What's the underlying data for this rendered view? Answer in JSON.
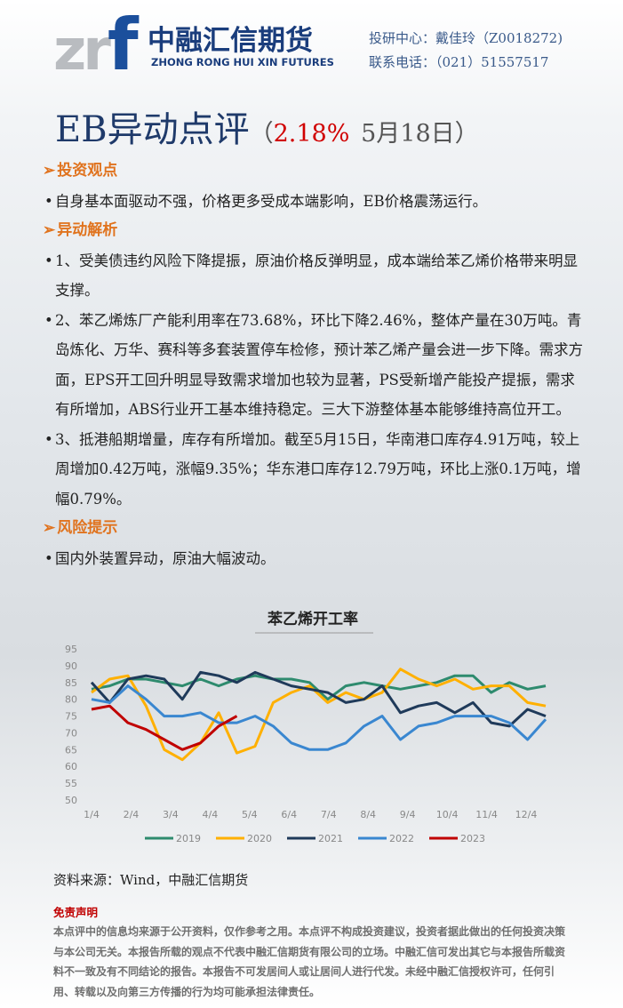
{
  "header": {
    "logo_mark_gray": "zr",
    "logo_mark_blue": "f",
    "company": "中融汇信期货",
    "company_en": "ZHONG RONG HUI XIN FUTURES",
    "contact_person": "投研中心：戴佳玲（Z0018272)",
    "contact_phone": "联系电话：（021）51557517"
  },
  "title": {
    "main": "EB异动点评",
    "open": "（",
    "change": "2.18%",
    "date": "5月18日）"
  },
  "sections": [
    {
      "heading": "投资观点",
      "bullets": [
        "自身基本面驱动不强，价格更多受成本端影响，EB价格震荡运行。"
      ]
    },
    {
      "heading": "异动解析",
      "bullets": [
        "1、受美债违约风险下降提振，原油价格反弹明显，成本端给苯乙烯价格带来明显支撑。",
        "2、苯乙烯炼厂产能利用率在73.68%，环比下降2.46%，整体产量在30万吨。青岛炼化、万华、赛科等多套装置停车检修，预计苯乙烯产量会进一步下降。需求方面，EPS开工回升明显导致需求增加也较为显著，PS受新增产能投产提振，需求有所增加，ABS行业开工基本维持稳定。三大下游整体基本能够维持高位开工。",
        "3、抵港船期增量，库存有所增加。截至5月15日，华南港口库存4.91万吨，较上周增加0.42万吨，涨幅9.35%；华东港口库存12.79万吨，环比上涨0.1万吨，增幅0.79%。"
      ]
    },
    {
      "heading": "风险提示",
      "bullets": [
        "国内外装置异动，原油大幅波动。"
      ]
    }
  ],
  "chart_data": {
    "type": "line",
    "title": "苯乙烯开工率",
    "x": [
      0,
      2,
      4,
      6,
      8,
      10,
      12,
      14,
      16,
      18,
      20,
      22,
      24,
      26,
      28,
      30,
      32,
      34,
      36,
      38,
      40,
      42,
      44,
      46,
      48,
      50
    ],
    "xlim": [
      0,
      50
    ],
    "xticks": [
      {
        "value": 0,
        "label": "1/4"
      },
      {
        "value": 4.35,
        "label": "2/4"
      },
      {
        "value": 8.7,
        "label": "3/4"
      },
      {
        "value": 13.05,
        "label": "4/4"
      },
      {
        "value": 17.4,
        "label": "5/4"
      },
      {
        "value": 21.75,
        "label": "6/4"
      },
      {
        "value": 26.1,
        "label": "7/4"
      },
      {
        "value": 30.45,
        "label": "8/4"
      },
      {
        "value": 34.8,
        "label": "9/4"
      },
      {
        "value": 39.15,
        "label": "10/4"
      },
      {
        "value": 43.5,
        "label": "11/4"
      },
      {
        "value": 47.85,
        "label": "12/4"
      }
    ],
    "ylim": [
      50,
      95
    ],
    "yticks": [
      50,
      55,
      60,
      65,
      70,
      75,
      80,
      85,
      90,
      95
    ],
    "grid": false,
    "legend": "bottom",
    "series": [
      {
        "name": "2019",
        "color": "#2e8b6e",
        "values": [
          83,
          84,
          86,
          86,
          85,
          84,
          86,
          84,
          86,
          87,
          86,
          86,
          85,
          80,
          84,
          85,
          84,
          83,
          84,
          85,
          87,
          87,
          82,
          85,
          83,
          84
        ]
      },
      {
        "name": "2020",
        "color": "#ffb000",
        "values": [
          82,
          86,
          87,
          78,
          65,
          62,
          67,
          76,
          64,
          66,
          79,
          82,
          84,
          79,
          82,
          80,
          82,
          89,
          86,
          84,
          86,
          83,
          84,
          84,
          79,
          78
        ]
      },
      {
        "name": "2021",
        "color": "#1f3a5a",
        "values": [
          85,
          79,
          86,
          87,
          86,
          80,
          88,
          87,
          85,
          88,
          86,
          84,
          83,
          82,
          79,
          80,
          84,
          76,
          78,
          79,
          76,
          79,
          73,
          72,
          77,
          75
        ]
      },
      {
        "name": "2022",
        "color": "#3a87d0",
        "values": [
          80,
          79,
          84,
          80,
          75,
          75,
          76,
          73,
          73,
          75,
          72,
          67,
          65,
          65,
          67,
          72,
          75,
          68,
          72,
          73,
          75,
          75,
          75,
          73,
          68,
          74
        ]
      },
      {
        "name": "2023",
        "color": "#c00000",
        "values": [
          77,
          78,
          73,
          71,
          68,
          65,
          67,
          72,
          75,
          null,
          null,
          null,
          null,
          null,
          null,
          null,
          null,
          null,
          null,
          null,
          null,
          null,
          null,
          null,
          null,
          null
        ]
      }
    ]
  },
  "source": "资料来源：Wind，中融汇信期货",
  "disclaimer": {
    "title": "免责声明",
    "text": "本点评中的信息均来源于公开资料，仅作参考之用。本点评不构成投资建议，投资者据此做出的任何投资决策与本公司无关。本报告所载的观点不代表中融汇信期货有限公司的立场。中融汇信可发出其它与本报告所载资料不一致及有不同结论的报告。本报告不可发居间人或让居间人进行代发。未经中融汇信授权许可，任何引用、转载以及向第三方传播的行为均可能承担法律责任。"
  }
}
